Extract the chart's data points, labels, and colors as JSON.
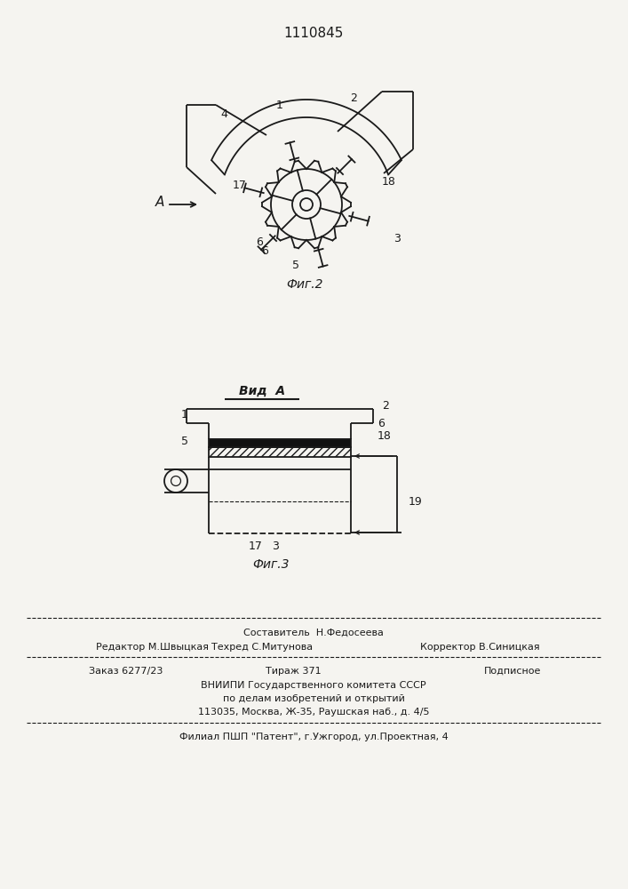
{
  "title": "1110845",
  "bg_color": "#f5f4f0",
  "fig2_caption": "Фиг.2",
  "fig3_caption": "Фиг.3",
  "vid_a_label": "Вид  А",
  "arrow_label": "А",
  "footer_line0": "Составитель  Н.Федосеева",
  "footer_line1a": "Редактор М.Швыцкая",
  "footer_line1b": "Техред С.Митунова",
  "footer_line1c": "Корректор В.Синицкая",
  "footer_line2a": "Заказ 6277/23",
  "footer_line2b": "Тираж 371",
  "footer_line2c": "Подписное",
  "footer_line3": "ВНИИПИ Государственного комитета СССР",
  "footer_line4": "по делам изобретений и открытий",
  "footer_line5": "113035, Москва, Ж-35, Раушская наб., д. 4/5",
  "footer_line6": "Филиал ПШП \"Патент\", г.Ужгород, ул.Проектная, 4",
  "line_color": "#1a1a1a"
}
